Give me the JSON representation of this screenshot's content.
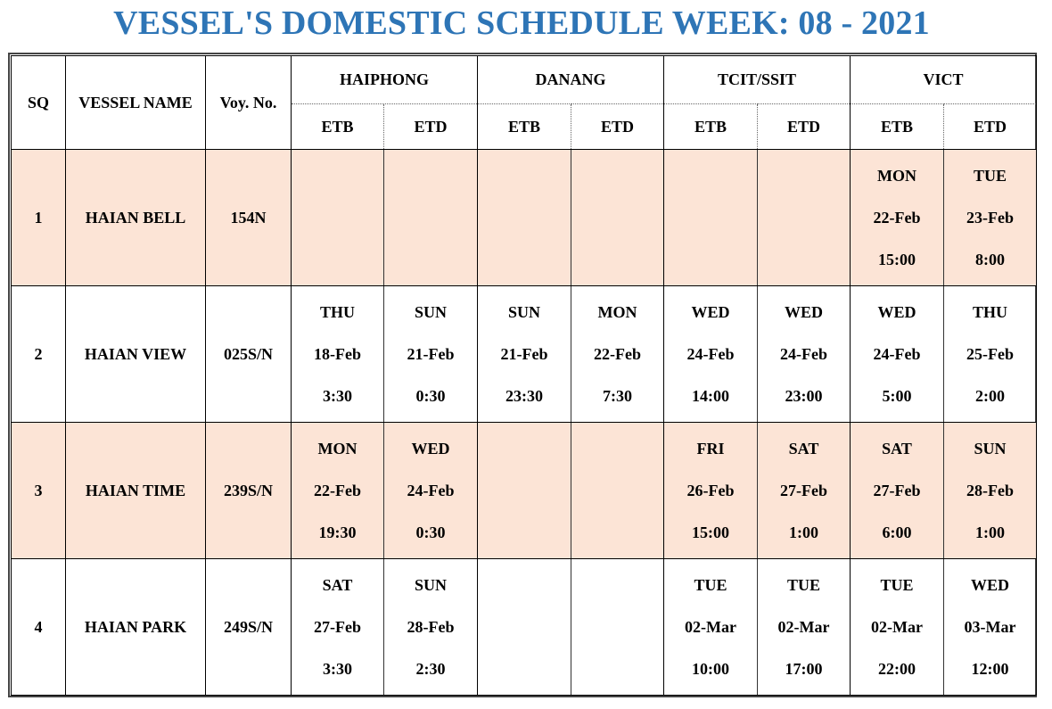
{
  "colors": {
    "title": "#2e75b6",
    "row_shade": "#fce4d6",
    "grid": "#000000"
  },
  "title": "VESSEL'S DOMESTIC SCHEDULE WEEK: 08 - 2021",
  "headers": {
    "sq": "SQ",
    "vessel_name": "VESSEL NAME",
    "voy_no": "Voy. No.",
    "ports": [
      "HAIPHONG",
      "DANANG",
      "TCIT/SSIT",
      "VICT"
    ],
    "etb": "ETB",
    "etd": "ETD"
  },
  "rows": [
    {
      "sq": "1",
      "vessel": "HAIAN BELL",
      "voy": "154N",
      "shaded": true,
      "haiphong": {
        "etb": null,
        "etd": null
      },
      "danang": {
        "etb": null,
        "etd": null
      },
      "tcit": {
        "etb": null,
        "etd": null
      },
      "vict": {
        "etb": {
          "day": "MON",
          "date": "22-Feb",
          "time": "15:00"
        },
        "etd": {
          "day": "TUE",
          "date": "23-Feb",
          "time": "8:00"
        }
      }
    },
    {
      "sq": "2",
      "vessel": "HAIAN VIEW",
      "voy": "025S/N",
      "shaded": false,
      "haiphong": {
        "etb": {
          "day": "THU",
          "date": "18-Feb",
          "time": "3:30"
        },
        "etd": {
          "day": "SUN",
          "date": "21-Feb",
          "time": "0:30"
        }
      },
      "danang": {
        "etb": {
          "day": "SUN",
          "date": "21-Feb",
          "time": "23:30"
        },
        "etd": {
          "day": "MON",
          "date": "22-Feb",
          "time": "7:30"
        }
      },
      "tcit": {
        "etb": {
          "day": "WED",
          "date": "24-Feb",
          "time": "14:00"
        },
        "etd": {
          "day": "WED",
          "date": "24-Feb",
          "time": "23:00"
        }
      },
      "vict": {
        "etb": {
          "day": "WED",
          "date": "24-Feb",
          "time": "5:00"
        },
        "etd": {
          "day": "THU",
          "date": "25-Feb",
          "time": "2:00"
        }
      }
    },
    {
      "sq": "3",
      "vessel": "HAIAN TIME",
      "voy": "239S/N",
      "shaded": true,
      "haiphong": {
        "etb": {
          "day": "MON",
          "date": "22-Feb",
          "time": "19:30"
        },
        "etd": {
          "day": "WED",
          "date": "24-Feb",
          "time": "0:30"
        }
      },
      "danang": {
        "etb": null,
        "etd": null
      },
      "tcit": {
        "etb": {
          "day": "FRI",
          "date": "26-Feb",
          "time": "15:00"
        },
        "etd": {
          "day": "SAT",
          "date": "27-Feb",
          "time": "1:00"
        }
      },
      "vict": {
        "etb": {
          "day": "SAT",
          "date": "27-Feb",
          "time": "6:00"
        },
        "etd": {
          "day": "SUN",
          "date": "28-Feb",
          "time": "1:00"
        }
      }
    },
    {
      "sq": "4",
      "vessel": "HAIAN PARK",
      "voy": "249S/N",
      "shaded": false,
      "haiphong": {
        "etb": {
          "day": "SAT",
          "date": "27-Feb",
          "time": "3:30"
        },
        "etd": {
          "day": "SUN",
          "date": "28-Feb",
          "time": "2:30"
        }
      },
      "danang": {
        "etb": null,
        "etd": null
      },
      "tcit": {
        "etb": {
          "day": "TUE",
          "date": "02-Mar",
          "time": "10:00"
        },
        "etd": {
          "day": "TUE",
          "date": "02-Mar",
          "time": "17:00"
        }
      },
      "vict": {
        "etb": {
          "day": "TUE",
          "date": "02-Mar",
          "time": "22:00"
        },
        "etd": {
          "day": "WED",
          "date": "03-Mar",
          "time": "12:00"
        }
      }
    }
  ]
}
